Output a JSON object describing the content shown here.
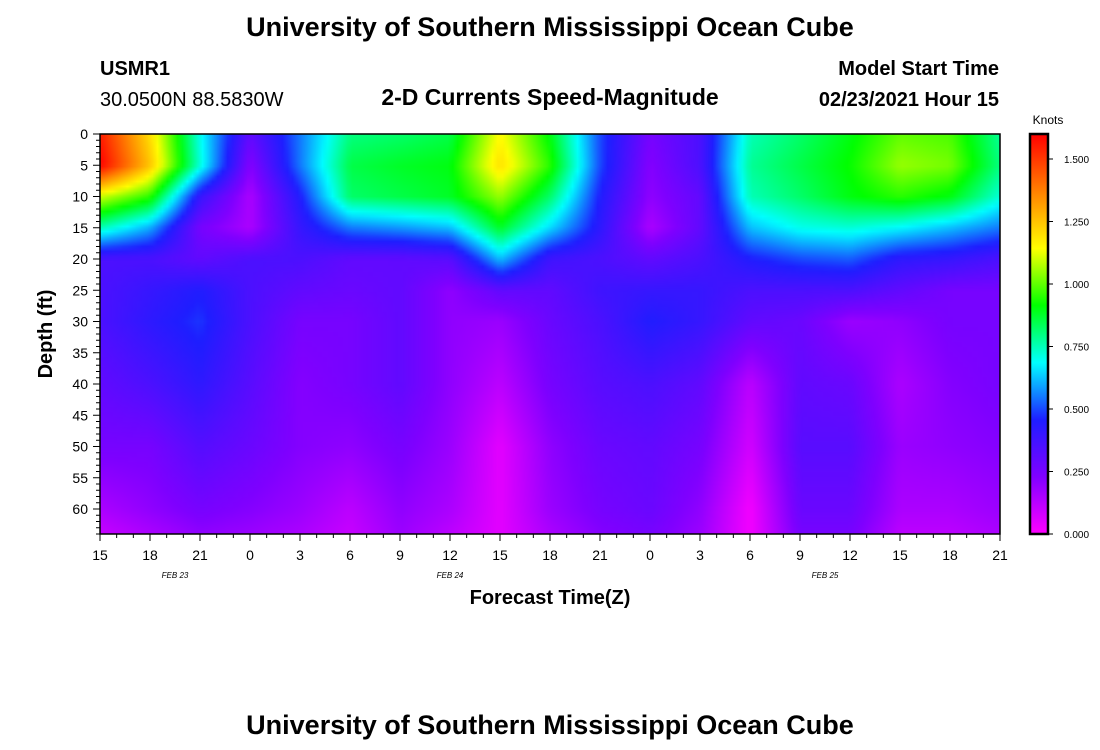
{
  "header": {
    "title": "University of Southern Mississippi Ocean Cube",
    "station": "USMR1",
    "location": "30.0500N 88.5830W",
    "subtitle": "2-D Currents Speed-Magnitude",
    "model_label": "Model Start Time",
    "model_time": "02/23/2021 Hour 15"
  },
  "footer": {
    "title": "University of Southern Mississippi Ocean Cube"
  },
  "colors": {
    "scale": [
      "#ff00ff",
      "#8000ff",
      "#1e1eff",
      "#00ffff",
      "#00ff00",
      "#ffff00",
      "#ff8000",
      "#ff0000"
    ]
  },
  "chart_data": {
    "type": "heatmap",
    "title": "2-D Currents Speed-Magnitude",
    "xlabel": "Forecast Time(Z)",
    "ylabel": "Depth (ft)",
    "x_tick_labels": [
      "15",
      "18",
      "21",
      "0",
      "3",
      "6",
      "9",
      "12",
      "15",
      "18",
      "21",
      "0",
      "3",
      "6",
      "9",
      "12",
      "15",
      "18",
      "21"
    ],
    "x_date_labels": [
      {
        "label": "FEB 23",
        "at_tick": 1.5
      },
      {
        "label": "FEB 24",
        "at_tick": 7
      },
      {
        "label": "FEB 25",
        "at_tick": 14.5
      }
    ],
    "ylim": [
      0,
      64
    ],
    "y_ticks": [
      0,
      5,
      10,
      15,
      20,
      25,
      30,
      35,
      40,
      45,
      50,
      55,
      60
    ],
    "colorbar": {
      "title": "Knots",
      "min": 0,
      "max": 1.6,
      "ticks": [
        "0.000",
        "0.250",
        "0.500",
        "0.750",
        "1.000",
        "1.250",
        "1.500"
      ],
      "tick_values": [
        0,
        0.25,
        0.5,
        0.75,
        1.0,
        1.25,
        1.5
      ]
    },
    "depths": [
      0,
      5,
      10,
      15,
      20,
      25,
      30,
      40,
      50,
      60,
      64
    ],
    "speed_knots": [
      [
        1.55,
        1.2,
        0.7,
        0.3,
        0.55,
        0.8,
        0.82,
        0.85,
        1.15,
        0.9,
        0.5,
        0.25,
        0.35,
        0.75,
        0.82,
        0.9,
        1.0,
        0.98,
        0.78
      ],
      [
        1.6,
        1.25,
        0.72,
        0.22,
        0.55,
        0.85,
        0.88,
        0.9,
        1.2,
        0.95,
        0.5,
        0.22,
        0.35,
        0.78,
        0.85,
        0.92,
        1.05,
        1.02,
        0.8
      ],
      [
        1.1,
        0.95,
        0.4,
        0.15,
        0.45,
        0.82,
        0.85,
        0.88,
        1.05,
        0.82,
        0.45,
        0.2,
        0.3,
        0.75,
        0.82,
        0.9,
        0.95,
        0.9,
        0.72
      ],
      [
        0.75,
        0.6,
        0.25,
        0.15,
        0.4,
        0.55,
        0.58,
        0.62,
        0.88,
        0.65,
        0.42,
        0.15,
        0.3,
        0.62,
        0.7,
        0.72,
        0.68,
        0.62,
        0.55
      ],
      [
        0.35,
        0.35,
        0.3,
        0.35,
        0.35,
        0.3,
        0.3,
        0.32,
        0.62,
        0.38,
        0.35,
        0.3,
        0.35,
        0.45,
        0.5,
        0.52,
        0.42,
        0.4,
        0.35
      ],
      [
        0.35,
        0.4,
        0.45,
        0.35,
        0.3,
        0.28,
        0.3,
        0.2,
        0.3,
        0.3,
        0.38,
        0.4,
        0.4,
        0.35,
        0.35,
        0.35,
        0.3,
        0.25,
        0.25
      ],
      [
        0.35,
        0.42,
        0.48,
        0.35,
        0.25,
        0.25,
        0.3,
        0.2,
        0.18,
        0.28,
        0.35,
        0.45,
        0.4,
        0.3,
        0.28,
        0.18,
        0.2,
        0.25,
        0.25
      ],
      [
        0.3,
        0.35,
        0.42,
        0.32,
        0.22,
        0.25,
        0.3,
        0.2,
        0.12,
        0.25,
        0.32,
        0.35,
        0.3,
        0.12,
        0.3,
        0.28,
        0.15,
        0.22,
        0.25
      ],
      [
        0.25,
        0.25,
        0.33,
        0.28,
        0.22,
        0.2,
        0.25,
        0.18,
        0.05,
        0.2,
        0.28,
        0.3,
        0.25,
        0.08,
        0.32,
        0.32,
        0.18,
        0.2,
        0.22
      ],
      [
        0.15,
        0.2,
        0.25,
        0.22,
        0.18,
        0.12,
        0.2,
        0.15,
        0.05,
        0.18,
        0.25,
        0.28,
        0.2,
        0.02,
        0.28,
        0.28,
        0.15,
        0.15,
        0.18
      ],
      [
        0.1,
        0.15,
        0.2,
        0.18,
        0.15,
        0.1,
        0.18,
        0.12,
        0.05,
        0.15,
        0.22,
        0.25,
        0.18,
        0.02,
        0.25,
        0.25,
        0.12,
        0.12,
        0.15
      ]
    ]
  }
}
